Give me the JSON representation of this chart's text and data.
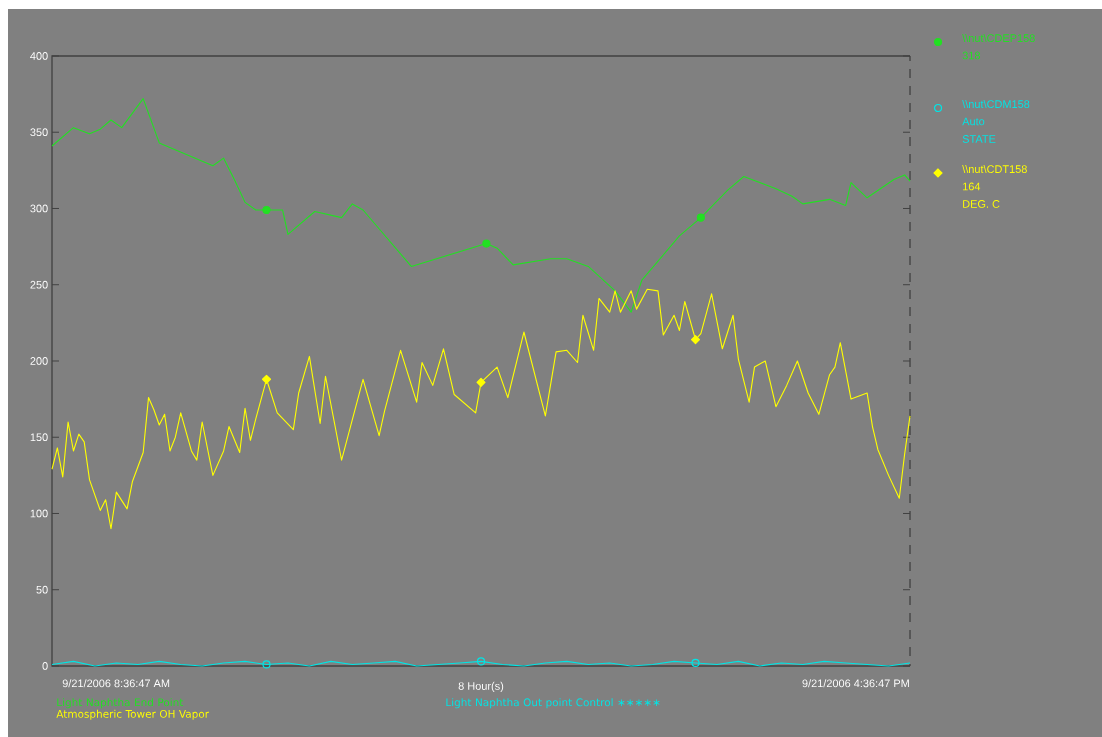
{
  "chart_data": {
    "type": "line",
    "xlabel": "8 Hour(s)",
    "categories": [
      null,
      null,
      null,
      null,
      null,
      null,
      null,
      null,
      null,
      null,
      null,
      null,
      null,
      null,
      null,
      null,
      null,
      null,
      null,
      null,
      null,
      null,
      null,
      null,
      null,
      null,
      null,
      null,
      null,
      null,
      null,
      null,
      null,
      null,
      null,
      null,
      null,
      null,
      null,
      null,
      null,
      null,
      null,
      null,
      null,
      null,
      null,
      null,
      null,
      null,
      null,
      null,
      null,
      null,
      null,
      null,
      null,
      null,
      null,
      null,
      null,
      null,
      null,
      null,
      null,
      null,
      null,
      null,
      null,
      null,
      null,
      null,
      null,
      null,
      null,
      null,
      null,
      null,
      null,
      null,
      null,
      null,
      null,
      null,
      null,
      null,
      null,
      null,
      null,
      null,
      null,
      null,
      null,
      null,
      null,
      null,
      null,
      null,
      null,
      null,
      null,
      null,
      null,
      null,
      null,
      null,
      null,
      null,
      null,
      null,
      null,
      null,
      null,
      null,
      null,
      null,
      null,
      null,
      null,
      null,
      null,
      null,
      null,
      null,
      null,
      null,
      null,
      null,
      null,
      null,
      null,
      null,
      null,
      null,
      null,
      null,
      null,
      null,
      null,
      null,
      null,
      null,
      null,
      null,
      null,
      null,
      null,
      null,
      null,
      null,
      null,
      null,
      null,
      null,
      null,
      null,
      null,
      null,
      null,
      null,
      null
    ],
    "ylim": [
      0,
      400
    ],
    "yticks": [
      0,
      50,
      100,
      150,
      200,
      250,
      300,
      350,
      400
    ],
    "legend": "bottom",
    "line_style": "solid",
    "annotations": [
      "\\\\nut\\CDEP158",
      "318",
      "\\\\nut\\CDM158",
      "Auto",
      "STATE",
      "\\\\nut\\CDT158",
      "164",
      "DEG. C",
      "9/21/2006 8:36:47 AM",
      "9/21/2006 4:36:47 PM"
    ],
    "series": [
      {
        "name": "Light Naphtha End Point",
        "color": "#22e022",
        "values": [
          341,
          null,
          null,
          null,
          353,
          null,
          null,
          349,
          null,
          352,
          null,
          358,
          null,
          353,
          null,
          null,
          null,
          372,
          null,
          null,
          343,
          null,
          null,
          null,
          null,
          null,
          null,
          null,
          null,
          null,
          328,
          null,
          333,
          null,
          319,
          null,
          304,
          null,
          299,
          null,
          299,
          null,
          null,
          299,
          283,
          null,
          null,
          null,
          null,
          298,
          null,
          null,
          null,
          null,
          294,
          null,
          303,
          null,
          299,
          null,
          null,
          null,
          null,
          null,
          null,
          null,
          null,
          262,
          null,
          null,
          null,
          null,
          null,
          null,
          null,
          null,
          null,
          null,
          null,
          null,
          null,
          277,
          null,
          274,
          null,
          null,
          263,
          null,
          null,
          null,
          null,
          null,
          null,
          267,
          null,
          null,
          267,
          null,
          null,
          null,
          262,
          null,
          null,
          null,
          null,
          246,
          null,
          null,
          232,
          null,
          253,
          null,
          null,
          null,
          null,
          null,
          null,
          282,
          null,
          null,
          null,
          294,
          null,
          null,
          null,
          null,
          312,
          null,
          null,
          321,
          null,
          null,
          null,
          null,
          null,
          313,
          null,
          null,
          308,
          null,
          303,
          null,
          null,
          null,
          null,
          306,
          null,
          null,
          302,
          317,
          null,
          null,
          307,
          null,
          null,
          null,
          null,
          319,
          null,
          322,
          318
        ]
      },
      {
        "name": "Light Naphtha Out point Control ∗∗∗∗∗",
        "color": "#00e5e5",
        "values": [
          1,
          null,
          null,
          null,
          3,
          null,
          null,
          null,
          0,
          null,
          null,
          null,
          2,
          null,
          null,
          null,
          1,
          null,
          null,
          null,
          3,
          null,
          null,
          null,
          1,
          null,
          null,
          null,
          0,
          null,
          null,
          null,
          2,
          null,
          null,
          null,
          3,
          null,
          null,
          null,
          1,
          null,
          null,
          null,
          2,
          null,
          null,
          null,
          0,
          null,
          null,
          null,
          3,
          null,
          null,
          null,
          1,
          null,
          null,
          null,
          2,
          null,
          null,
          null,
          3,
          null,
          null,
          null,
          0,
          null,
          null,
          null,
          1,
          null,
          null,
          null,
          2,
          null,
          null,
          null,
          3,
          null,
          null,
          null,
          1,
          null,
          null,
          null,
          0,
          null,
          null,
          null,
          2,
          null,
          null,
          null,
          3,
          null,
          null,
          null,
          1,
          null,
          null,
          null,
          2,
          null,
          null,
          null,
          0,
          null,
          null,
          null,
          1,
          null,
          null,
          null,
          3,
          null,
          null,
          null,
          2,
          null,
          null,
          null,
          1,
          null,
          null,
          null,
          3,
          null,
          null,
          null,
          0,
          null,
          null,
          null,
          2,
          null,
          null,
          null,
          1,
          null,
          null,
          null,
          3,
          null,
          null,
          null,
          2,
          null,
          null,
          null,
          1,
          null,
          null,
          null,
          0,
          null,
          null,
          null,
          2
        ]
      },
      {
        "name": "Atmospheric Tower OH Vapor",
        "color": "#ffff00",
        "values": [
          129,
          143,
          124,
          160,
          141,
          152,
          147,
          122,
          null,
          102,
          109,
          90,
          114,
          null,
          103,
          121,
          null,
          140,
          176,
          168,
          158,
          165,
          141,
          150,
          166,
          null,
          141,
          135,
          160,
          null,
          125,
          null,
          141,
          157,
          null,
          140,
          169,
          148,
          162,
          null,
          188,
          null,
          166,
          null,
          null,
          155,
          179,
          null,
          203,
          null,
          159,
          190,
          null,
          null,
          135,
          null,
          null,
          null,
          188,
          null,
          null,
          151,
          167,
          null,
          null,
          207,
          null,
          null,
          173,
          199,
          null,
          184,
          null,
          208,
          null,
          178,
          null,
          null,
          null,
          166,
          186,
          null,
          null,
          196,
          null,
          176,
          null,
          null,
          219,
          null,
          null,
          null,
          164,
          null,
          206,
          null,
          207,
          null,
          199,
          230,
          null,
          207,
          241,
          null,
          232,
          246,
          232,
          null,
          246,
          234,
          null,
          247,
          null,
          246,
          217,
          null,
          230,
          220,
          239,
          null,
          214,
          218,
          null,
          244,
          null,
          208,
          null,
          230,
          201,
          null,
          173,
          196,
          null,
          200,
          null,
          170,
          null,
          184,
          null,
          200,
          null,
          179,
          null,
          165,
          null,
          191,
          196,
          212,
          null,
          175,
          null,
          null,
          179,
          157,
          142,
          null,
          125,
          null,
          110,
          139,
          164
        ]
      }
    ]
  }
}
